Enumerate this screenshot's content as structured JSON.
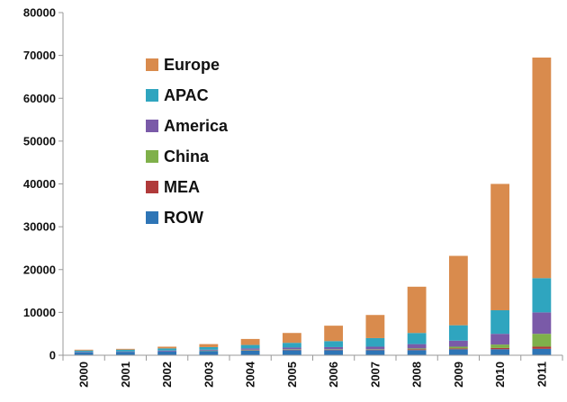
{
  "chart_data": {
    "type": "bar",
    "stacked": true,
    "title": "",
    "xlabel": "",
    "ylabel": "",
    "categories": [
      "2000",
      "2001",
      "2002",
      "2003",
      "2004",
      "2005",
      "2006",
      "2007",
      "2008",
      "2009",
      "2010",
      "2011"
    ],
    "ylim": [
      0,
      80000
    ],
    "yticks": [
      "0",
      "10000",
      "20000",
      "30000",
      "40000",
      "50000",
      "60000",
      "70000",
      "80000"
    ],
    "grid": false,
    "legend_position": "top-left",
    "legend_order": [
      "Europe",
      "APAC",
      "America",
      "China",
      "MEA",
      "ROW"
    ],
    "series": [
      {
        "name": "ROW",
        "color": "#2e75b6",
        "values": [
          700,
          800,
          900,
          1000,
          1100,
          1200,
          1200,
          1200,
          1200,
          1400,
          1400,
          1500
        ]
      },
      {
        "name": "MEA",
        "color": "#b03a3a",
        "values": [
          0,
          0,
          0,
          0,
          100,
          100,
          100,
          100,
          200,
          200,
          300,
          500
        ]
      },
      {
        "name": "China",
        "color": "#7fb04a",
        "values": [
          0,
          0,
          0,
          100,
          100,
          100,
          100,
          100,
          200,
          400,
          800,
          3000
        ]
      },
      {
        "name": "America",
        "color": "#7a5aa8",
        "values": [
          100,
          100,
          200,
          200,
          300,
          400,
          500,
          600,
          1000,
          1400,
          2500,
          5000
        ]
      },
      {
        "name": "APAC",
        "color": "#2fa5bf",
        "values": [
          300,
          400,
          500,
          600,
          800,
          1100,
          1400,
          2000,
          2600,
          3600,
          5500,
          8000
        ]
      },
      {
        "name": "Europe",
        "color": "#d98b4d",
        "values": [
          200,
          200,
          400,
          700,
          1400,
          2300,
          3600,
          5400,
          10800,
          16200,
          29500,
          51500
        ]
      }
    ]
  }
}
